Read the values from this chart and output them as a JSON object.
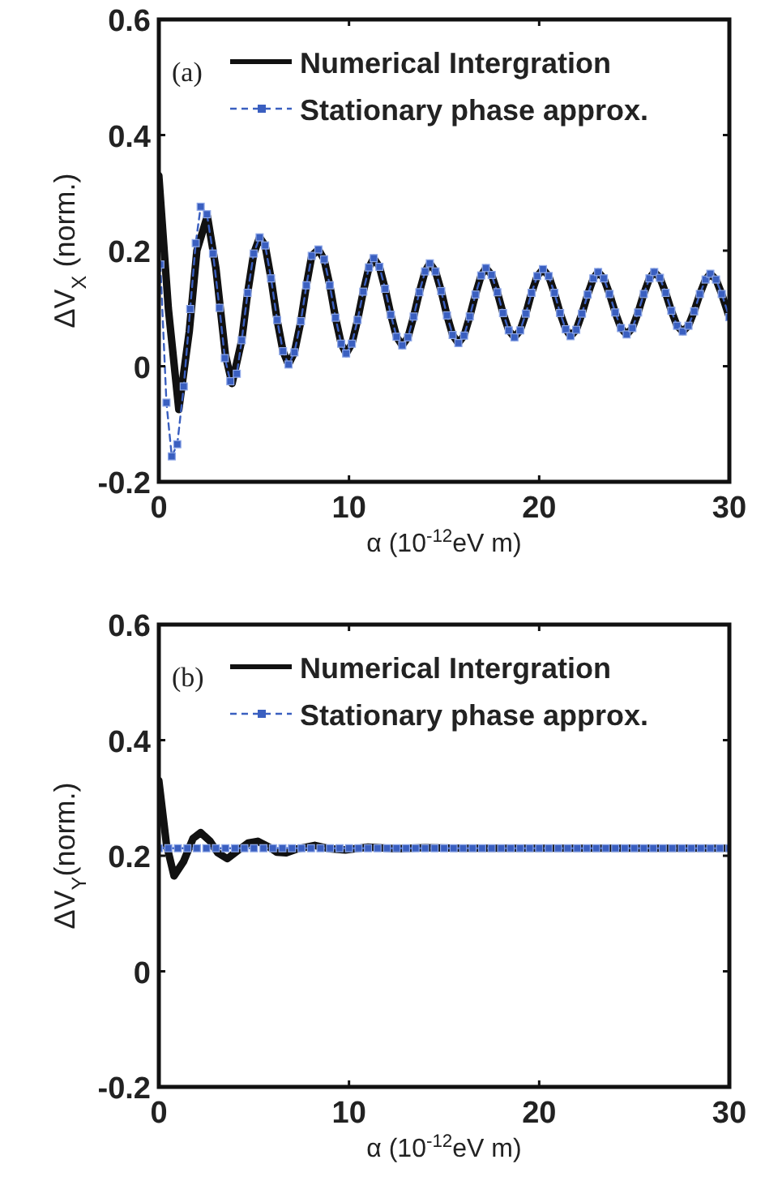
{
  "chart_data": [
    {
      "type": "line",
      "xlabel": "α (10$^{-12}$eV m)",
      "ylabel": "ΔV$_{X}$ (norm.)",
      "xlim": [
        0,
        30
      ],
      "ylim": [
        -0.2,
        0.6
      ],
      "xticks": [
        0,
        10,
        20,
        30
      ],
      "yticks": [
        -0.2,
        0,
        0.2,
        0.4,
        0.6
      ],
      "grid": false,
      "legend": "top",
      "annotations": [
        "(a)"
      ],
      "series": [
        {
          "name": "Numerical Intergration",
          "color": "#111111",
          "line_style": "solid",
          "marker": "none",
          "x": [
            0,
            0.5,
            1.05,
            1.6,
            2.0,
            2.55,
            3.0,
            3.5,
            3.85,
            4.36,
            4.67,
            4.99,
            5.3,
            5.59,
            5.9,
            6.22,
            6.53,
            6.82,
            7.13,
            7.47,
            7.76,
            8.04,
            8.39,
            8.69,
            8.99,
            9.29,
            9.59,
            9.85,
            10.15,
            10.45,
            10.75,
            11.05,
            11.3,
            11.6,
            11.9,
            12.2,
            12.5,
            12.8,
            13.1,
            13.4,
            13.7,
            14.0,
            14.25,
            14.55,
            14.85,
            15.15,
            15.45,
            15.75,
            16.05,
            16.35,
            16.65,
            16.95,
            17.2,
            17.5,
            17.8,
            18.1,
            18.4,
            18.7,
            19.0,
            19.3,
            19.6,
            19.9,
            20.2,
            20.5,
            20.8,
            21.1,
            21.4,
            21.65,
            21.95,
            22.25,
            22.55,
            22.85,
            23.1,
            23.4,
            23.7,
            24.0,
            24.3,
            24.6,
            24.9,
            25.2,
            25.5,
            25.8,
            26.05,
            26.35,
            26.65,
            26.95,
            27.25,
            27.55,
            27.85,
            28.15,
            28.45,
            28.75,
            29.0,
            29.3,
            29.6,
            30
          ],
          "values": [
            0.33,
            0.1,
            -0.075,
            0.06,
            0.2,
            0.26,
            0.17,
            0.02,
            -0.03,
            0.045,
            0.127,
            0.195,
            0.223,
            0.209,
            0.152,
            0.08,
            0.026,
            0.003,
            0.024,
            0.078,
            0.14,
            0.191,
            0.202,
            0.185,
            0.14,
            0.084,
            0.039,
            0.022,
            0.039,
            0.08,
            0.129,
            0.171,
            0.187,
            0.172,
            0.134,
            0.089,
            0.051,
            0.036,
            0.05,
            0.086,
            0.128,
            0.164,
            0.178,
            0.164,
            0.13,
            0.088,
            0.054,
            0.04,
            0.053,
            0.086,
            0.124,
            0.157,
            0.17,
            0.158,
            0.128,
            0.092,
            0.062,
            0.05,
            0.062,
            0.091,
            0.127,
            0.156,
            0.168,
            0.156,
            0.127,
            0.092,
            0.064,
            0.052,
            0.063,
            0.091,
            0.124,
            0.152,
            0.163,
            0.152,
            0.125,
            0.093,
            0.066,
            0.055,
            0.066,
            0.093,
            0.125,
            0.152,
            0.163,
            0.153,
            0.127,
            0.096,
            0.07,
            0.06,
            0.07,
            0.095,
            0.125,
            0.15,
            0.16,
            0.15,
            0.125,
            0.085
          ]
        },
        {
          "name": "Stationary phase approx.",
          "color": "#3a5fc0",
          "line_style": "dashed",
          "marker": "square",
          "x": [
            0.08,
            0.4,
            0.68,
            0.97,
            1.31,
            1.65,
            1.94,
            2.2,
            2.53,
            2.85,
            3.19,
            3.47,
            3.76,
            4.1,
            4.36,
            4.67,
            4.99,
            5.3,
            5.59,
            5.9,
            6.22,
            6.53,
            6.82,
            7.13,
            7.47,
            7.76,
            8.04,
            8.39,
            8.69,
            8.99,
            9.29,
            9.59,
            9.85,
            10.15,
            10.45,
            10.75,
            11.05,
            11.3,
            11.6,
            11.9,
            12.2,
            12.5,
            12.8,
            13.1,
            13.4,
            13.7,
            14.0,
            14.25,
            14.55,
            14.85,
            15.15,
            15.45,
            15.75,
            16.05,
            16.35,
            16.65,
            16.95,
            17.2,
            17.5,
            17.8,
            18.1,
            18.4,
            18.7,
            19.0,
            19.3,
            19.6,
            19.9,
            20.2,
            20.5,
            20.8,
            21.1,
            21.4,
            21.65,
            21.95,
            22.25,
            22.55,
            22.85,
            23.1,
            23.4,
            23.7,
            24.0,
            24.3,
            24.6,
            24.9,
            25.2,
            25.5,
            25.8,
            26.05,
            26.35,
            26.65,
            26.95,
            27.25,
            27.55,
            27.85,
            28.15,
            28.45,
            28.75,
            29.0,
            29.3,
            29.6,
            30
          ],
          "values": [
            0.176,
            -0.063,
            -0.156,
            -0.135,
            -0.035,
            0.099,
            0.213,
            0.276,
            0.263,
            0.195,
            0.101,
            0.014,
            -0.026,
            -0.013,
            0.045,
            0.127,
            0.195,
            0.223,
            0.209,
            0.152,
            0.08,
            0.026,
            0.003,
            0.024,
            0.078,
            0.14,
            0.191,
            0.202,
            0.185,
            0.14,
            0.084,
            0.039,
            0.022,
            0.039,
            0.08,
            0.129,
            0.171,
            0.187,
            0.172,
            0.134,
            0.089,
            0.051,
            0.036,
            0.05,
            0.086,
            0.128,
            0.164,
            0.178,
            0.164,
            0.13,
            0.088,
            0.054,
            0.04,
            0.053,
            0.086,
            0.124,
            0.157,
            0.17,
            0.158,
            0.128,
            0.092,
            0.062,
            0.05,
            0.062,
            0.091,
            0.127,
            0.156,
            0.168,
            0.156,
            0.127,
            0.092,
            0.064,
            0.052,
            0.063,
            0.091,
            0.124,
            0.152,
            0.163,
            0.152,
            0.125,
            0.093,
            0.066,
            0.055,
            0.066,
            0.093,
            0.125,
            0.152,
            0.163,
            0.153,
            0.127,
            0.096,
            0.07,
            0.06,
            0.07,
            0.095,
            0.125,
            0.15,
            0.16,
            0.15,
            0.125,
            0.085
          ]
        }
      ]
    },
    {
      "type": "line",
      "xlabel": "α (10$^{-12}$eV m)",
      "ylabel": "ΔV$_{Y}$(norm.)",
      "xlim": [
        0,
        30
      ],
      "ylim": [
        -0.2,
        0.6
      ],
      "xticks": [
        0,
        10,
        20,
        30
      ],
      "yticks": [
        -0.2,
        0,
        0.2,
        0.4,
        0.6
      ],
      "grid": false,
      "legend": "top",
      "annotations": [
        "(b)"
      ],
      "series": [
        {
          "name": "Numerical Intergration",
          "color": "#111111",
          "line_style": "solid",
          "marker": "none",
          "x": [
            0,
            0.4,
            0.8,
            1.3,
            1.8,
            2.2,
            2.7,
            3.1,
            3.6,
            4.2,
            4.7,
            5.2,
            5.8,
            6.2,
            6.7,
            7.3,
            8.2,
            9.0,
            9.8,
            11,
            12.5,
            14,
            16,
            20,
            25,
            30
          ],
          "values": [
            0.33,
            0.22,
            0.165,
            0.19,
            0.23,
            0.24,
            0.225,
            0.205,
            0.195,
            0.21,
            0.222,
            0.225,
            0.215,
            0.206,
            0.205,
            0.212,
            0.218,
            0.212,
            0.21,
            0.215,
            0.212,
            0.214,
            0.213,
            0.213,
            0.213,
            0.213
          ]
        },
        {
          "name": "Stationary phase approx.",
          "color": "#3a5fc0",
          "line_style": "dashed",
          "marker": "square",
          "x": [
            0,
            0.5,
            1,
            1.5,
            2,
            2.5,
            3,
            3.5,
            4,
            4.5,
            5,
            5.5,
            6,
            6.5,
            7,
            7.5,
            8,
            8.5,
            9,
            9.5,
            10,
            10.5,
            11,
            11.5,
            12,
            12.5,
            13,
            13.5,
            14,
            14.5,
            15,
            15.5,
            16,
            16.5,
            17,
            17.5,
            18,
            18.5,
            19,
            19.5,
            20,
            20.5,
            21,
            21.5,
            22,
            22.5,
            23,
            23.5,
            24,
            24.5,
            25,
            25.5,
            26,
            26.5,
            27,
            27.5,
            28,
            28.5,
            29,
            29.5,
            30
          ],
          "values": [
            0.213,
            0.213,
            0.213,
            0.213,
            0.213,
            0.213,
            0.213,
            0.213,
            0.213,
            0.213,
            0.213,
            0.213,
            0.213,
            0.213,
            0.213,
            0.213,
            0.213,
            0.213,
            0.213,
            0.213,
            0.213,
            0.213,
            0.213,
            0.213,
            0.213,
            0.213,
            0.213,
            0.213,
            0.213,
            0.213,
            0.213,
            0.213,
            0.213,
            0.213,
            0.213,
            0.213,
            0.213,
            0.213,
            0.213,
            0.213,
            0.213,
            0.213,
            0.213,
            0.213,
            0.213,
            0.213,
            0.213,
            0.213,
            0.213,
            0.213,
            0.213,
            0.213,
            0.213,
            0.213,
            0.213,
            0.213,
            0.213,
            0.213,
            0.213,
            0.213,
            0.213
          ]
        }
      ]
    }
  ]
}
